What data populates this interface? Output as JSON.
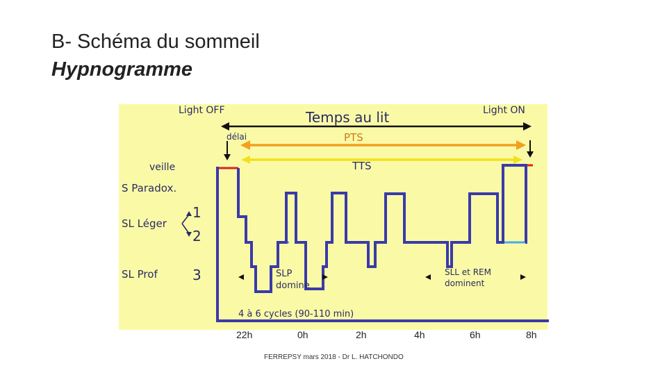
{
  "slide": {
    "title": "B- Schéma du sommeil",
    "subtitle": "Hypnogramme",
    "footer": "FERREPSY mars 2018 - Dr L. HATCHONDO"
  },
  "diagram": {
    "light_off": "Light OFF",
    "light_on": "Light ON",
    "temps_au_lit": "Temps au lit",
    "delai": "délai",
    "pts": "PTS",
    "tts": "TTS",
    "stage_veille": "veille",
    "stage_paradox": "S Paradox.",
    "stage_leger": "SL Léger",
    "stage_leger_1": "1",
    "stage_leger_2": "2",
    "stage_prof": "SL Prof",
    "stage_prof_3": "3",
    "slp_line1": "SLP",
    "slp_line2": "domine",
    "sll_line1": "SLL et REM",
    "sll_line2": "dominent",
    "cycles": "4 à 6 cycles (90-110 min)",
    "time_ticks": [
      "22h",
      "0h",
      "2h",
      "4h",
      "6h",
      "8h"
    ],
    "colors": {
      "panel": "#fafaa6",
      "trace": "#3a3aaa",
      "paradox": "#22cc22",
      "leger": "#44aaee",
      "veille": "#dd2222",
      "pts_arrow": "#f2a020",
      "tts_arrow": "#f2e020",
      "bed_arrow": "#111111"
    }
  }
}
